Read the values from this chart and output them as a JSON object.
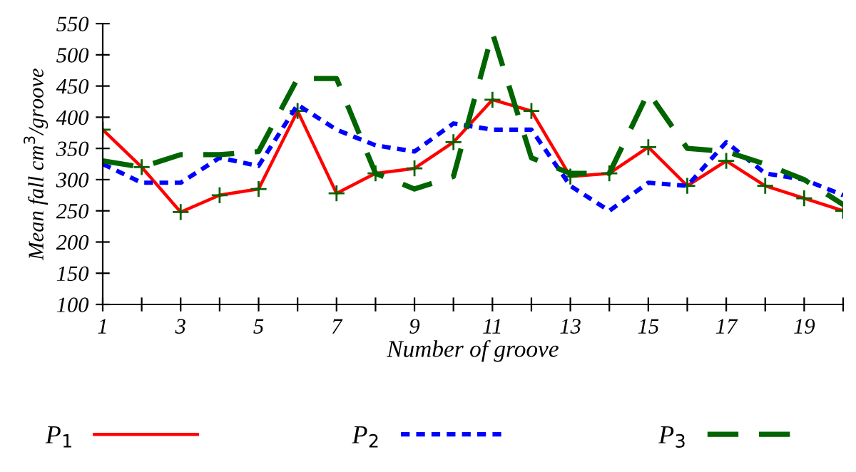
{
  "chart_data": {
    "type": "line",
    "xlabel": "Number of groove",
    "ylabel": "Mean fall cm$^{3}$/groove",
    "x": [
      1,
      2,
      3,
      4,
      5,
      6,
      7,
      8,
      9,
      10,
      11,
      12,
      13,
      14,
      15,
      16,
      17,
      18,
      19,
      20
    ],
    "series": [
      {
        "name": "P$_{1}$",
        "color": "#ff0000",
        "line_style": "solid",
        "marker": "cross",
        "values": [
          380,
          320,
          248,
          275,
          285,
          410,
          278,
          310,
          318,
          360,
          428,
          410,
          305,
          310,
          352,
          290,
          330,
          290,
          270,
          250
        ]
      },
      {
        "name": "P$_{2}$",
        "color": "#0000ff",
        "line_style": "dotted",
        "marker": "none",
        "values": [
          325,
          295,
          295,
          335,
          322,
          420,
          380,
          355,
          345,
          390,
          380,
          380,
          290,
          250,
          295,
          290,
          360,
          310,
          300,
          275
        ]
      },
      {
        "name": "P$_{3}$",
        "color": "#006400",
        "line_style": "dashed",
        "marker": "none",
        "values": [
          330,
          320,
          340,
          340,
          345,
          462,
          462,
          310,
          285,
          305,
          535,
          335,
          310,
          310,
          440,
          350,
          345,
          325,
          300,
          260
        ]
      }
    ],
    "xlim": [
      1,
      20
    ],
    "xticks": [
      1,
      {
        "value": 2,
        "label": null
      },
      3,
      {
        "value": 4,
        "label": null
      },
      5,
      {
        "value": 6,
        "label": null
      },
      7,
      {
        "value": 8,
        "label": null
      },
      9,
      {
        "value": 10,
        "label": null
      },
      11,
      {
        "value": 12,
        "label": null
      },
      13,
      {
        "value": 14,
        "label": null
      },
      15,
      {
        "value": 16,
        "label": null
      },
      17,
      {
        "value": 18,
        "label": null
      },
      19,
      {
        "value": 20,
        "label": null
      }
    ],
    "ylim": [
      100,
      550
    ],
    "yticks": [
      100,
      150,
      200,
      250,
      300,
      350,
      400,
      450,
      500,
      550
    ],
    "grid": false,
    "legend": "bottom"
  }
}
